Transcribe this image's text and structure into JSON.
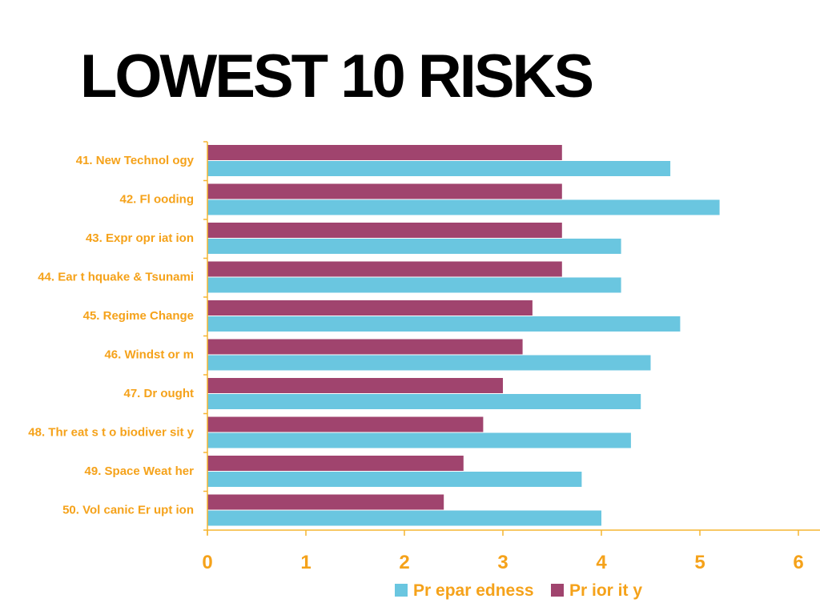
{
  "slide": {
    "title": "LOWEST 10 RISKS"
  },
  "colors": {
    "text_accent": "#f5a21a",
    "axis": "#f5b531",
    "preparedness": "#6ac6e0",
    "priority": "#a0446e"
  },
  "chart_data": {
    "type": "bar",
    "orientation": "horizontal",
    "categories": [
      "41. New  Technol ogy",
      "42. Fl ooding",
      "43. Expr opr iat ion",
      "44. Ear t hquake & Tsunami",
      "45. Regime Change",
      "46. Windst or m",
      "47. Dr ought",
      "48. Thr eat s t o biodiver sit y",
      "49. Space Weat her",
      "50. Vol canic Er upt ion"
    ],
    "series": [
      {
        "name": "Priority",
        "color": "#a0446e",
        "values": [
          3.6,
          3.6,
          3.6,
          3.6,
          3.3,
          3.2,
          3.0,
          2.8,
          2.6,
          2.4
        ]
      },
      {
        "name": "Preparedness",
        "color": "#6ac6e0",
        "values": [
          4.7,
          5.2,
          4.2,
          4.2,
          4.8,
          4.5,
          4.4,
          4.3,
          3.8,
          4.0
        ]
      }
    ],
    "xlim": [
      0,
      6
    ],
    "xticks": [
      "0",
      "1",
      "2",
      "3",
      "4",
      "5",
      "6"
    ],
    "grid": false,
    "legend": {
      "position": "bottom",
      "entries": [
        "Pr epar edness",
        "Pr ior it y"
      ]
    }
  }
}
